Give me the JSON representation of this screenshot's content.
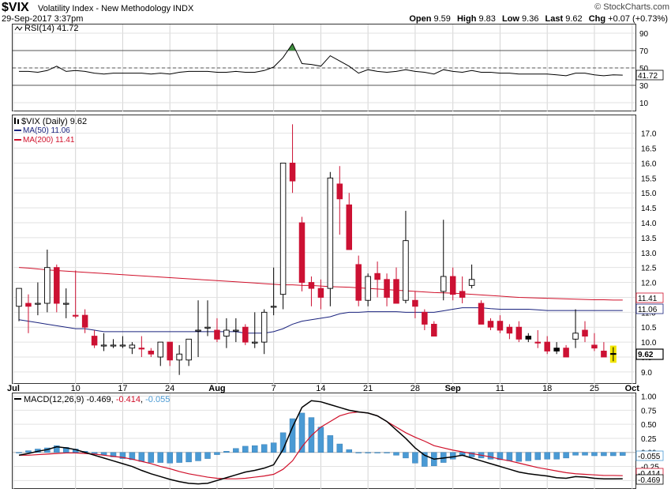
{
  "header": {
    "symbol": "$VIX",
    "name": "Volatility Index - New Methodology",
    "exchange": "INDX",
    "watermark": "© StockCharts.com",
    "datetime": "29-Sep-2017 3:37pm",
    "quote": {
      "open_label": "Open",
      "open": "9.59",
      "high_label": "High",
      "high": "9.83",
      "low_label": "Low",
      "low": "9.36",
      "last_label": "Last",
      "last": "9.62",
      "chg_label": "Chg",
      "chg": "+0.07 (+0.73%)"
    }
  },
  "rsi_panel": {
    "legend": "RSI(14) 41.72",
    "current_tag": "41.72",
    "yticks": [
      90,
      70,
      50,
      30,
      10
    ],
    "ylim": [
      0,
      100
    ],
    "levels": [
      70,
      50,
      30
    ]
  },
  "price_panel": {
    "legend": "$VIX (Daily) 9.62",
    "ma50_legend": "MA(50) 11.06",
    "ma200_legend": "MA(200) 11.41",
    "tags": {
      "ma200": "11.41",
      "ma50": "11.06",
      "last": "9.62"
    },
    "yticks": [
      17.0,
      16.5,
      16.0,
      15.5,
      15.0,
      14.5,
      14.0,
      13.5,
      13.0,
      12.5,
      12.0,
      11.5,
      11.0,
      10.5,
      10.0,
      9.5,
      9.0
    ],
    "ylim": [
      8.6,
      17.6
    ]
  },
  "macd_panel": {
    "legend_prefix": "MACD(12,26,9)",
    "macd_value": "-0.469",
    "signal_value": "-0.414",
    "hist_value": "-0.055",
    "yticks": [
      "1.00",
      "0.75",
      "0.50",
      "0.25",
      "0.00",
      "-0.25",
      "-0.50"
    ],
    "ylim": [
      -0.65,
      1.05
    ],
    "tags": {
      "hist": "-0.055",
      "signal": "-0.414",
      "macd": "-0.469"
    }
  },
  "xaxis": {
    "labels": [
      "Jul",
      "10",
      "17",
      "24",
      "Aug",
      "7",
      "14",
      "21",
      "28",
      "Sep",
      "11",
      "18",
      "25",
      "Oct"
    ],
    "label_bars": [
      0,
      6,
      11,
      16,
      21,
      27,
      32,
      37,
      42,
      46,
      51,
      56,
      61,
      65
    ]
  },
  "colors": {
    "up": "#ffffff",
    "down_filled": "#000000",
    "down": "#cc1133",
    "ma50": "#1a237e",
    "ma200": "#d0102a",
    "rsi": "#000000",
    "macd": "#000000",
    "signal": "#d0102a",
    "hist": "#4a9ad4",
    "highlight": "#f2e600"
  },
  "chart_data": {
    "type": "candlestick",
    "title": "$VIX Volatility Index - New Methodology INDX",
    "bars": [
      {
        "o": 11.2,
        "h": 11.5,
        "l": 10.7,
        "c": 11.8
      },
      {
        "o": 11.3,
        "h": 11.6,
        "l": 10.3,
        "c": 11.2
      },
      {
        "o": 11.3,
        "h": 12.0,
        "l": 10.9,
        "c": 11.3
      },
      {
        "o": 11.3,
        "h": 13.1,
        "l": 11.0,
        "c": 12.5
      },
      {
        "o": 12.5,
        "h": 12.6,
        "l": 11.0,
        "c": 11.3
      },
      {
        "o": 11.3,
        "h": 11.8,
        "l": 10.8,
        "c": 11.3
      },
      {
        "o": 10.9,
        "h": 12.4,
        "l": 10.8,
        "c": 10.9
      },
      {
        "o": 10.9,
        "h": 11.1,
        "l": 10.3,
        "c": 10.5
      },
      {
        "o": 10.2,
        "h": 10.4,
        "l": 9.8,
        "c": 9.9
      },
      {
        "o": 9.9,
        "h": 10.3,
        "l": 9.7,
        "c": 9.9
      },
      {
        "o": 9.9,
        "h": 10.1,
        "l": 9.8,
        "c": 9.9
      },
      {
        "o": 9.9,
        "h": 10.2,
        "l": 9.8,
        "c": 9.9
      },
      {
        "o": 9.8,
        "h": 10.0,
        "l": 9.6,
        "c": 9.9
      },
      {
        "o": 9.8,
        "h": 10.2,
        "l": 9.5,
        "c": 9.8
      },
      {
        "o": 9.6,
        "h": 9.8,
        "l": 9.5,
        "c": 9.7
      },
      {
        "o": 9.5,
        "h": 10.0,
        "l": 9.2,
        "c": 10.0
      },
      {
        "o": 10.0,
        "h": 10.0,
        "l": 9.2,
        "c": 9.4
      },
      {
        "o": 9.4,
        "h": 9.9,
        "l": 8.9,
        "c": 9.6
      },
      {
        "o": 9.4,
        "h": 10.1,
        "l": 9.2,
        "c": 10.1
      },
      {
        "o": 10.4,
        "h": 11.4,
        "l": 9.5,
        "c": 10.4
      },
      {
        "o": 10.5,
        "h": 11.4,
        "l": 10.2,
        "c": 10.5
      },
      {
        "o": 10.4,
        "h": 10.8,
        "l": 10.0,
        "c": 10.1
      },
      {
        "o": 10.2,
        "h": 10.8,
        "l": 9.8,
        "c": 10.4
      },
      {
        "o": 10.4,
        "h": 10.8,
        "l": 10.0,
        "c": 10.4
      },
      {
        "o": 10.5,
        "h": 10.6,
        "l": 9.9,
        "c": 10.0
      },
      {
        "o": 10.0,
        "h": 11.0,
        "l": 9.8,
        "c": 10.0
      },
      {
        "o": 10.0,
        "h": 11.1,
        "l": 9.6,
        "c": 11.0
      },
      {
        "o": 11.2,
        "h": 12.5,
        "l": 10.9,
        "c": 11.2
      },
      {
        "o": 11.6,
        "h": 16.0,
        "l": 11.1,
        "c": 16.0
      },
      {
        "o": 16.0,
        "h": 17.3,
        "l": 15.0,
        "c": 15.4
      },
      {
        "o": 14.0,
        "h": 14.2,
        "l": 11.7,
        "c": 12.0
      },
      {
        "o": 12.0,
        "h": 12.2,
        "l": 11.2,
        "c": 11.8
      },
      {
        "o": 11.8,
        "h": 12.1,
        "l": 11.1,
        "c": 11.5
      },
      {
        "o": 11.8,
        "h": 15.7,
        "l": 11.2,
        "c": 15.5
      },
      {
        "o": 15.3,
        "h": 15.9,
        "l": 13.6,
        "c": 14.8
      },
      {
        "o": 14.6,
        "h": 15.0,
        "l": 13.2,
        "c": 13.1
      },
      {
        "o": 12.6,
        "h": 12.9,
        "l": 11.2,
        "c": 11.4
      },
      {
        "o": 11.4,
        "h": 12.3,
        "l": 11.2,
        "c": 12.2
      },
      {
        "o": 12.3,
        "h": 12.7,
        "l": 11.5,
        "c": 12.1
      },
      {
        "o": 12.1,
        "h": 12.3,
        "l": 11.2,
        "c": 11.5
      },
      {
        "o": 12.1,
        "h": 12.5,
        "l": 11.3,
        "c": 11.3
      },
      {
        "o": 11.4,
        "h": 14.4,
        "l": 11.3,
        "c": 13.4
      },
      {
        "o": 11.4,
        "h": 11.7,
        "l": 10.8,
        "c": 11.2
      },
      {
        "o": 11.0,
        "h": 11.1,
        "l": 10.4,
        "c": 10.6
      },
      {
        "o": 10.6,
        "h": 10.7,
        "l": 10.3,
        "c": 10.2
      },
      {
        "o": 11.7,
        "h": 14.1,
        "l": 11.4,
        "c": 12.2
      },
      {
        "o": 12.2,
        "h": 12.5,
        "l": 11.4,
        "c": 11.6
      },
      {
        "o": 11.7,
        "h": 12.2,
        "l": 11.3,
        "c": 11.5
      },
      {
        "o": 11.9,
        "h": 12.6,
        "l": 11.8,
        "c": 12.1
      },
      {
        "o": 11.3,
        "h": 11.4,
        "l": 10.6,
        "c": 10.6
      },
      {
        "o": 10.7,
        "h": 10.8,
        "l": 10.4,
        "c": 10.5
      },
      {
        "o": 10.7,
        "h": 10.9,
        "l": 10.3,
        "c": 10.4
      },
      {
        "o": 10.5,
        "h": 10.6,
        "l": 10.1,
        "c": 10.3
      },
      {
        "o": 10.5,
        "h": 10.7,
        "l": 10.0,
        "c": 10.1
      },
      {
        "o": 10.2,
        "h": 10.3,
        "l": 10.0,
        "c": 10.1
      },
      {
        "o": 10.0,
        "h": 10.4,
        "l": 9.8,
        "c": 10.0
      },
      {
        "o": 10.0,
        "h": 10.2,
        "l": 9.6,
        "c": 9.7
      },
      {
        "o": 9.8,
        "h": 10.0,
        "l": 9.6,
        "c": 9.7
      },
      {
        "o": 9.8,
        "h": 9.9,
        "l": 9.5,
        "c": 9.5
      },
      {
        "o": 10.1,
        "h": 11.1,
        "l": 9.8,
        "c": 10.3
      },
      {
        "o": 10.4,
        "h": 10.7,
        "l": 10.0,
        "c": 10.2
      },
      {
        "o": 9.9,
        "h": 10.3,
        "l": 9.7,
        "c": 9.8
      },
      {
        "o": 9.7,
        "h": 10.0,
        "l": 9.5,
        "c": 9.5
      },
      {
        "o": 9.59,
        "h": 9.83,
        "l": 9.36,
        "c": 9.62
      }
    ],
    "ma50": [
      10.75,
      10.7,
      10.65,
      10.6,
      10.55,
      10.5,
      10.45,
      10.45,
      10.4,
      10.35,
      10.35,
      10.35,
      10.35,
      10.35,
      10.35,
      10.35,
      10.35,
      10.35,
      10.35,
      10.35,
      10.35,
      10.35,
      10.35,
      10.35,
      10.3,
      10.3,
      10.3,
      10.35,
      10.45,
      10.6,
      10.7,
      10.75,
      10.8,
      10.85,
      10.95,
      11.0,
      11.0,
      11.02,
      11.02,
      11.02,
      11.02,
      11.0,
      11.0,
      11.0,
      11.0,
      11.05,
      11.1,
      11.15,
      11.15,
      11.15,
      11.12,
      11.1,
      11.1,
      11.1,
      11.1,
      11.08,
      11.06,
      11.06,
      11.06,
      11.06,
      11.06,
      11.06,
      11.06,
      11.06,
      11.06
    ],
    "ma200": [
      12.5,
      12.48,
      12.45,
      12.42,
      12.4,
      12.38,
      12.36,
      12.34,
      12.32,
      12.3,
      12.28,
      12.26,
      12.24,
      12.22,
      12.2,
      12.18,
      12.16,
      12.14,
      12.12,
      12.1,
      12.08,
      12.06,
      12.04,
      12.02,
      12.0,
      11.98,
      11.96,
      11.94,
      11.92,
      11.92,
      11.9,
      11.9,
      11.88,
      11.86,
      11.85,
      11.84,
      11.82,
      11.8,
      11.78,
      11.76,
      11.74,
      11.72,
      11.7,
      11.68,
      11.66,
      11.65,
      11.64,
      11.62,
      11.6,
      11.58,
      11.56,
      11.54,
      11.52,
      11.5,
      11.49,
      11.48,
      11.47,
      11.46,
      11.45,
      11.44,
      11.43,
      11.42,
      11.42,
      11.41,
      11.41
    ],
    "rsi": [
      46,
      46,
      45,
      47,
      52,
      46,
      47,
      46,
      44,
      43,
      44,
      44,
      44,
      44,
      43,
      44,
      43,
      45,
      46,
      46,
      46,
      45,
      45,
      46,
      45,
      45,
      47,
      51,
      62,
      78,
      55,
      54,
      52,
      64,
      58,
      52,
      44,
      48,
      46,
      45,
      46,
      48,
      46,
      45,
      43,
      48,
      46,
      45,
      47,
      45,
      45,
      44,
      44,
      43,
      43,
      43,
      43,
      42,
      41,
      44,
      44,
      42,
      41,
      42,
      41.72
    ],
    "macd": [
      -0.05,
      -0.02,
      0.02,
      0.05,
      0.1,
      0.08,
      0.05,
      0.0,
      -0.05,
      -0.1,
      -0.15,
      -0.2,
      -0.25,
      -0.32,
      -0.38,
      -0.43,
      -0.48,
      -0.52,
      -0.55,
      -0.56,
      -0.55,
      -0.5,
      -0.45,
      -0.4,
      -0.35,
      -0.32,
      -0.28,
      -0.22,
      0.05,
      0.45,
      0.8,
      0.92,
      0.9,
      0.85,
      0.8,
      0.75,
      0.72,
      0.7,
      0.65,
      0.55,
      0.4,
      0.25,
      0.08,
      -0.05,
      -0.12,
      -0.1,
      -0.08,
      -0.05,
      -0.1,
      -0.15,
      -0.2,
      -0.25,
      -0.3,
      -0.35,
      -0.38,
      -0.4,
      -0.42,
      -0.45,
      -0.46,
      -0.43,
      -0.44,
      -0.46,
      -0.47,
      -0.47,
      -0.469
    ],
    "signal": [
      -0.05,
      -0.05,
      -0.04,
      -0.03,
      -0.02,
      -0.01,
      -0.01,
      -0.02,
      -0.03,
      -0.05,
      -0.07,
      -0.09,
      -0.12,
      -0.16,
      -0.2,
      -0.25,
      -0.29,
      -0.34,
      -0.38,
      -0.41,
      -0.44,
      -0.46,
      -0.47,
      -0.47,
      -0.46,
      -0.44,
      -0.42,
      -0.39,
      -0.3,
      -0.15,
      0.1,
      0.3,
      0.45,
      0.55,
      0.65,
      0.7,
      0.72,
      0.7,
      0.65,
      0.55,
      0.45,
      0.35,
      0.27,
      0.2,
      0.12,
      0.08,
      0.04,
      0.01,
      -0.02,
      -0.05,
      -0.08,
      -0.12,
      -0.15,
      -0.19,
      -0.23,
      -0.27,
      -0.3,
      -0.33,
      -0.36,
      -0.38,
      -0.39,
      -0.4,
      -0.41,
      -0.41,
      -0.414
    ]
  }
}
